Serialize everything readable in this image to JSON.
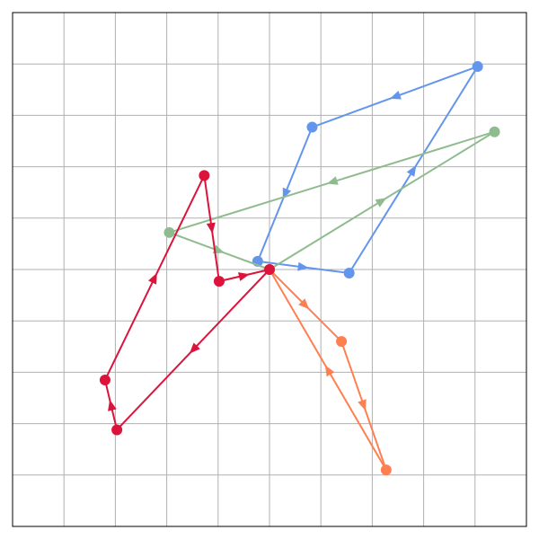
{
  "chart_data": {
    "type": "line",
    "title": "",
    "xlabel": "",
    "ylabel": "",
    "xlim": [
      -5,
      5
    ],
    "ylim": [
      -5,
      5
    ],
    "grid": true,
    "tick_labels": false,
    "legend": false,
    "arrows": "midpoint-direction",
    "series": [
      {
        "color": "#6495ED",
        "closed": true,
        "points": [
          {
            "x": -0.23,
            "y": 0.16
          },
          {
            "x": 1.55,
            "y": -0.07
          },
          {
            "x": 4.05,
            "y": 3.95
          },
          {
            "x": 0.83,
            "y": 2.77
          }
        ]
      },
      {
        "color": "#8FBC8F",
        "closed": true,
        "points": [
          {
            "x": 0,
            "y": 0
          },
          {
            "x": 4.38,
            "y": 2.68
          },
          {
            "x": -1.95,
            "y": 0.72
          }
        ]
      },
      {
        "color": "#FF7F50",
        "closed": true,
        "points": [
          {
            "x": 0,
            "y": 0
          },
          {
            "x": 1.4,
            "y": -1.4
          },
          {
            "x": 2.27,
            "y": -3.9
          }
        ]
      },
      {
        "color": "#DC143C",
        "closed": true,
        "points": [
          {
            "x": 0,
            "y": 0
          },
          {
            "x": -2.97,
            "y": -3.12
          },
          {
            "x": -3.2,
            "y": -2.15
          },
          {
            "x": -1.27,
            "y": 1.83
          },
          {
            "x": -0.98,
            "y": -0.23
          }
        ]
      }
    ]
  }
}
